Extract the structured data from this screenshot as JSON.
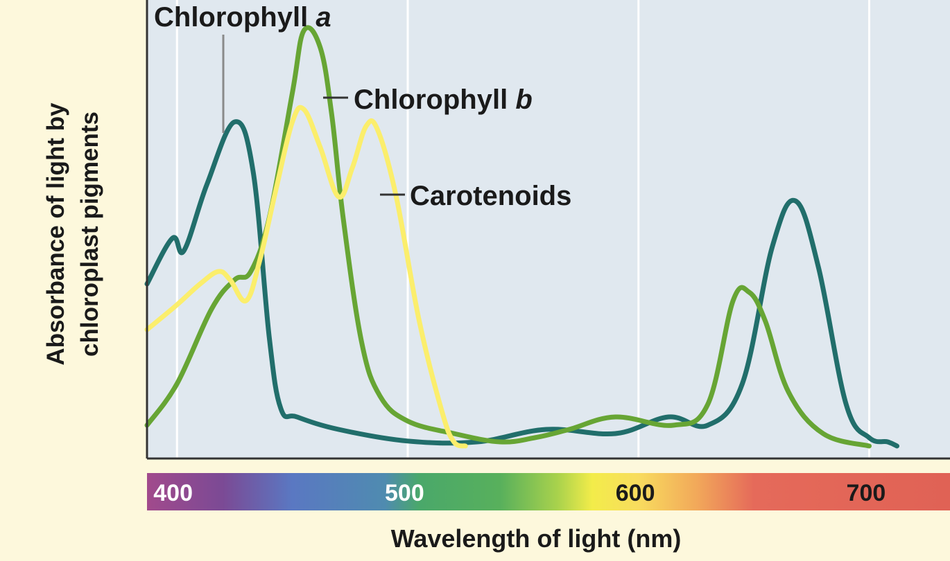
{
  "chart_data": {
    "type": "line",
    "title": "",
    "xlabel": "Wavelength of light (nm)",
    "ylabel_line1": "Absorbance of light by",
    "ylabel_line2": "chloroplast pigments",
    "x_ticks": [
      400,
      500,
      600,
      700
    ],
    "x_tick_labels": [
      "400",
      "500",
      "600",
      "700"
    ],
    "xlim": [
      387,
      735
    ],
    "ylim": [
      0,
      1
    ],
    "grid": true,
    "colors": {
      "plot_background": "#e0e8ef",
      "page_background": "#fdf8dc",
      "gridline": "#ffffff",
      "axis": "#333333",
      "chlorophyll_a": "#216e6b",
      "chlorophyll_b": "#67a534",
      "carotenoids": "#fbee6c"
    },
    "spectrum_bar": [
      {
        "nm": 387,
        "color": "#a14a8c"
      },
      {
        "nm": 420,
        "color": "#7b4a95"
      },
      {
        "nm": 450,
        "color": "#5a78c2"
      },
      {
        "nm": 490,
        "color": "#4f8bb0"
      },
      {
        "nm": 505,
        "color": "#4aa86a"
      },
      {
        "nm": 540,
        "color": "#58b05c"
      },
      {
        "nm": 565,
        "color": "#a9d24c"
      },
      {
        "nm": 580,
        "color": "#f3ec4a"
      },
      {
        "nm": 600,
        "color": "#f8dc5e"
      },
      {
        "nm": 625,
        "color": "#f2a95a"
      },
      {
        "nm": 650,
        "color": "#e56a5a"
      },
      {
        "nm": 735,
        "color": "#e06255"
      }
    ],
    "series": [
      {
        "name": "Chlorophyll a",
        "label_main": "Chlorophyll ",
        "label_italic": "a",
        "color_key": "chlorophyll_a",
        "x": [
          387,
          398,
          403,
          413,
          425,
          433,
          440,
          445,
          452,
          470,
          500,
          530,
          560,
          590,
          613,
          630,
          645,
          658,
          668,
          678,
          690,
          700,
          708,
          712
        ],
        "y": [
          0.39,
          0.5,
          0.47,
          0.63,
          0.78,
          0.66,
          0.26,
          0.09,
          0.07,
          0.04,
          0.012,
          0.01,
          0.04,
          0.03,
          0.07,
          0.05,
          0.15,
          0.48,
          0.59,
          0.43,
          0.1,
          0.02,
          0.01,
          0.0
        ]
      },
      {
        "name": "Chlorophyll b",
        "label_main": "Chlorophyll ",
        "label_italic": "b",
        "color_key": "chlorophyll_b",
        "x": [
          387,
          400,
          415,
          425,
          432,
          440,
          450,
          455,
          462,
          467,
          472,
          480,
          488,
          500,
          520,
          540,
          555,
          570,
          590,
          615,
          630,
          641,
          648,
          655,
          665,
          680,
          700
        ],
        "y": [
          0.05,
          0.15,
          0.33,
          0.4,
          0.42,
          0.55,
          0.85,
          1.0,
          0.96,
          0.8,
          0.55,
          0.25,
          0.12,
          0.06,
          0.03,
          0.01,
          0.02,
          0.04,
          0.07,
          0.05,
          0.1,
          0.35,
          0.37,
          0.3,
          0.13,
          0.03,
          0.0
        ]
      },
      {
        "name": "Carotenoids",
        "label_main": "Carotenoids",
        "label_italic": "",
        "color_key": "carotenoids",
        "x": [
          387,
          400,
          410,
          418,
          423,
          430,
          436,
          443,
          450,
          455,
          462,
          470,
          476,
          482,
          487,
          495,
          505,
          515,
          520,
          525
        ],
        "y": [
          0.28,
          0.34,
          0.39,
          0.42,
          0.4,
          0.35,
          0.45,
          0.62,
          0.78,
          0.81,
          0.72,
          0.6,
          0.67,
          0.77,
          0.76,
          0.6,
          0.3,
          0.08,
          0.01,
          0.0
        ]
      }
    ]
  }
}
